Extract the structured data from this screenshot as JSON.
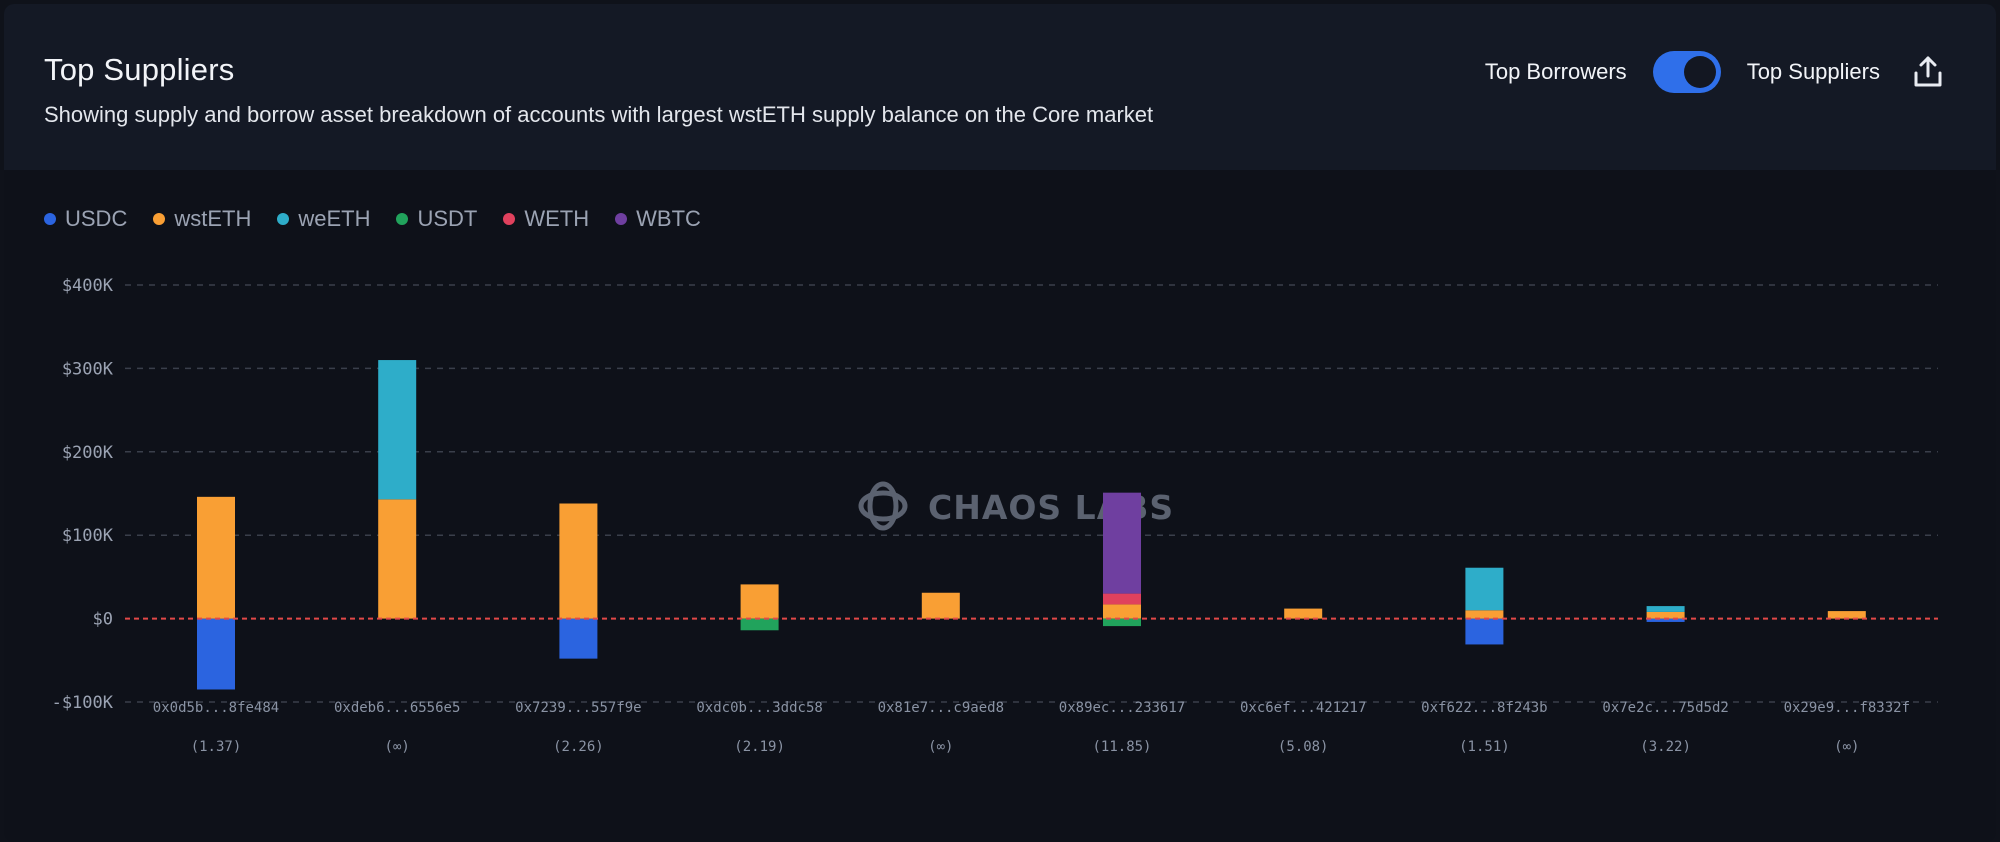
{
  "header": {
    "title": "Top Suppliers",
    "subtitle": "Showing supply and borrow asset breakdown of accounts with largest wstETH supply balance on the Core market",
    "toggle_left_label": "Top Borrowers",
    "toggle_right_label": "Top Suppliers",
    "toggle_on": true
  },
  "icons": {
    "export": "share-export-icon",
    "watermark": "chaos-labs-logo-icon"
  },
  "watermark": "CHAOS LABS",
  "colors": {
    "USDC": "#2b64e0",
    "wstETH": "#f99f34",
    "weETH": "#2eadc9",
    "USDT": "#21a35c",
    "WETH": "#e0415d",
    "WBTC": "#6f3fa0",
    "zero_line": "#e24848",
    "grid": "#3a3f4b"
  },
  "chart_data": {
    "type": "bar",
    "stacked": true,
    "y_tick_labels": [
      "$400K",
      "$300K",
      "$200K",
      "$100K",
      "$0",
      "-$100K"
    ],
    "y_ticks": [
      400000,
      300000,
      200000,
      100000,
      0,
      -100000
    ],
    "ylim": [
      -100000,
      400000
    ],
    "grid": true,
    "legend_position": "top-left",
    "categories": [
      "0x0d5b...8fe484",
      "0xdeb6...6556e5",
      "0x7239...557f9e",
      "0xdc0b...3ddc58",
      "0x81e7...c9aed8",
      "0x89ec...233617",
      "0xc6ef...421217",
      "0xf622...8f243b",
      "0x7e2c...75d5d2",
      "0x29e9...f8332f"
    ],
    "sublabels": [
      "(1.37)",
      "(∞)",
      "(2.26)",
      "(2.19)",
      "(∞)",
      "(11.85)",
      "(5.08)",
      "(1.51)",
      "(3.22)",
      "(∞)"
    ],
    "series": [
      {
        "name": "USDC",
        "values": [
          -85000,
          0,
          -48000,
          0,
          0,
          0,
          0,
          -31000,
          -4000,
          0
        ]
      },
      {
        "name": "wstETH",
        "values": [
          146000,
          143000,
          138000,
          41000,
          31000,
          17000,
          12000,
          10000,
          8000,
          9000
        ]
      },
      {
        "name": "weETH",
        "values": [
          0,
          167000,
          0,
          0,
          0,
          0,
          0,
          51000,
          7000,
          0
        ]
      },
      {
        "name": "USDT",
        "values": [
          0,
          0,
          0,
          -14000,
          0,
          -9000,
          0,
          0,
          0,
          0
        ]
      },
      {
        "name": "WETH",
        "values": [
          0,
          0,
          0,
          0,
          0,
          13000,
          0,
          0,
          0,
          0
        ]
      },
      {
        "name": "WBTC",
        "values": [
          0,
          0,
          0,
          0,
          0,
          121000,
          0,
          0,
          0,
          0
        ]
      }
    ]
  }
}
